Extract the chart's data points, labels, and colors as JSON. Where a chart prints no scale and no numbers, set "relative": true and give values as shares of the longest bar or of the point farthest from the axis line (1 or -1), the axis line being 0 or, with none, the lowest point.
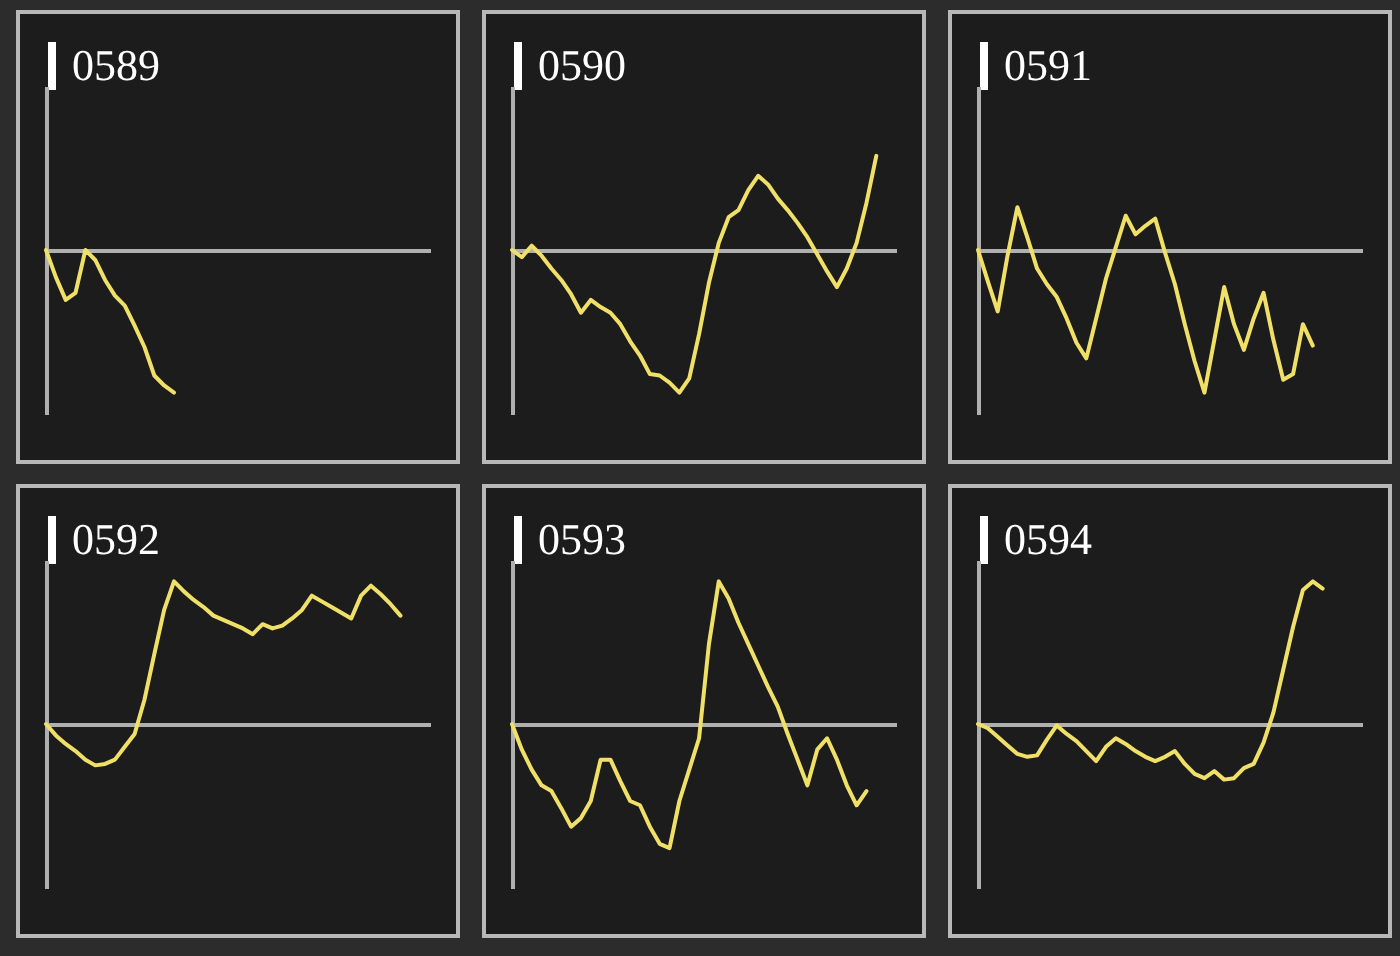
{
  "chart_data": [
    {
      "type": "line",
      "title": "0589",
      "relative": true,
      "categories": [
        null,
        null,
        null,
        null,
        null,
        null,
        null,
        null,
        null,
        null,
        null,
        null,
        null,
        null,
        null,
        null,
        null,
        null,
        null,
        null,
        null,
        null,
        null,
        null,
        null,
        null,
        null,
        null,
        null,
        null,
        null,
        null,
        null,
        null,
        null,
        null,
        null,
        null,
        null,
        null
      ],
      "series": [
        {
          "color": "#f0e068",
          "values": [
            0,
            -0.19,
            -0.35,
            -0.3,
            0,
            -0.07,
            -0.21,
            -0.32,
            -0.39,
            -0.53,
            -0.68,
            -0.88,
            -0.95,
            -1,
            null,
            null,
            null,
            null,
            null,
            null,
            null,
            null,
            null,
            null,
            null,
            null,
            null,
            null,
            null,
            null,
            null,
            null,
            null,
            null,
            null,
            null,
            null,
            null,
            null,
            null
          ]
        }
      ]
    },
    {
      "type": "line",
      "title": "0590",
      "relative": true,
      "categories": [
        null,
        null,
        null,
        null,
        null,
        null,
        null,
        null,
        null,
        null,
        null,
        null,
        null,
        null,
        null,
        null,
        null,
        null,
        null,
        null,
        null,
        null,
        null,
        null,
        null,
        null,
        null,
        null,
        null,
        null,
        null,
        null,
        null,
        null,
        null,
        null,
        null,
        null,
        null,
        null
      ],
      "series": [
        {
          "color": "#f0e068",
          "values": [
            0,
            -0.05,
            0.03,
            -0.04,
            -0.13,
            -0.21,
            -0.31,
            -0.44,
            -0.35,
            -0.4,
            -0.44,
            -0.52,
            -0.64,
            -0.74,
            -0.87,
            -0.88,
            -0.93,
            -1,
            -0.9,
            -0.59,
            -0.23,
            0.05,
            0.23,
            0.28,
            0.42,
            0.52,
            0.46,
            0.36,
            0.28,
            0.19,
            0.09,
            -0.03,
            -0.15,
            -0.26,
            -0.13,
            0.05,
            0.33,
            0.66,
            null,
            null
          ]
        }
      ]
    },
    {
      "type": "line",
      "title": "0591",
      "relative": true,
      "categories": [
        null,
        null,
        null,
        null,
        null,
        null,
        null,
        null,
        null,
        null,
        null,
        null,
        null,
        null,
        null,
        null,
        null,
        null,
        null,
        null,
        null,
        null,
        null,
        null,
        null,
        null,
        null,
        null,
        null,
        null,
        null,
        null,
        null,
        null,
        null,
        null,
        null,
        null,
        null,
        null
      ],
      "series": [
        {
          "color": "#f0e068",
          "values": [
            0,
            -0.22,
            -0.43,
            -0.04,
            0.3,
            0.09,
            -0.13,
            -0.24,
            -0.33,
            -0.48,
            -0.65,
            -0.76,
            -0.48,
            -0.2,
            0.02,
            0.24,
            0.11,
            0.17,
            0.22,
            -0.02,
            -0.24,
            -0.52,
            -0.78,
            -1,
            -0.63,
            -0.26,
            -0.52,
            -0.7,
            -0.48,
            -0.3,
            -0.63,
            -0.91,
            -0.87,
            -0.52,
            -0.67,
            null,
            null,
            null,
            null,
            null
          ]
        }
      ]
    },
    {
      "type": "line",
      "title": "0592",
      "relative": true,
      "categories": [
        null,
        null,
        null,
        null,
        null,
        null,
        null,
        null,
        null,
        null,
        null,
        null,
        null,
        null,
        null,
        null,
        null,
        null,
        null,
        null,
        null,
        null,
        null,
        null,
        null,
        null,
        null,
        null,
        null,
        null,
        null,
        null,
        null,
        null,
        null,
        null,
        null,
        null,
        null,
        null
      ],
      "series": [
        {
          "color": "#f0e068",
          "values": [
            0,
            -0.08,
            -0.14,
            -0.19,
            -0.25,
            -0.29,
            -0.28,
            -0.25,
            -0.16,
            -0.07,
            0.17,
            0.49,
            0.8,
            1,
            0.93,
            0.87,
            0.82,
            0.76,
            0.73,
            0.7,
            0.67,
            0.63,
            0.7,
            0.67,
            0.69,
            0.74,
            0.8,
            0.9,
            0.86,
            0.82,
            0.78,
            0.74,
            0.9,
            0.97,
            0.91,
            0.84,
            0.76,
            null,
            null,
            null
          ]
        }
      ]
    },
    {
      "type": "line",
      "title": "0593",
      "relative": true,
      "categories": [
        null,
        null,
        null,
        null,
        null,
        null,
        null,
        null,
        null,
        null,
        null,
        null,
        null,
        null,
        null,
        null,
        null,
        null,
        null,
        null,
        null,
        null,
        null,
        null,
        null,
        null,
        null,
        null,
        null,
        null,
        null,
        null,
        null,
        null,
        null,
        null,
        null,
        null,
        null,
        null
      ],
      "series": [
        {
          "color": "#f0e068",
          "values": [
            0,
            -0.18,
            -0.32,
            -0.43,
            -0.47,
            -0.59,
            -0.72,
            -0.66,
            -0.54,
            -0.25,
            -0.25,
            -0.4,
            -0.54,
            -0.57,
            -0.72,
            -0.84,
            -0.87,
            -0.54,
            -0.32,
            -0.1,
            0.56,
            1,
            0.88,
            0.71,
            0.56,
            0.41,
            0.26,
            0.12,
            -0.07,
            -0.25,
            -0.43,
            -0.18,
            -0.1,
            -0.25,
            -0.43,
            -0.57,
            -0.47,
            null,
            null,
            null
          ]
        }
      ]
    },
    {
      "type": "line",
      "title": "0594",
      "relative": true,
      "categories": [
        null,
        null,
        null,
        null,
        null,
        null,
        null,
        null,
        null,
        null,
        null,
        null,
        null,
        null,
        null,
        null,
        null,
        null,
        null,
        null,
        null,
        null,
        null,
        null,
        null,
        null,
        null,
        null,
        null,
        null,
        null,
        null,
        null,
        null,
        null,
        null,
        null,
        null,
        null,
        null
      ],
      "series": [
        {
          "color": "#f0e068",
          "values": [
            0,
            -0.03,
            -0.09,
            -0.15,
            -0.21,
            -0.23,
            -0.22,
            -0.11,
            -0.01,
            -0.07,
            -0.12,
            -0.19,
            -0.26,
            -0.16,
            -0.1,
            -0.14,
            -0.19,
            -0.23,
            -0.26,
            -0.23,
            -0.19,
            -0.28,
            -0.35,
            -0.38,
            -0.33,
            -0.39,
            -0.38,
            -0.31,
            -0.28,
            -0.13,
            0.08,
            0.38,
            0.68,
            0.94,
            1,
            0.95,
            null,
            null,
            null,
            null
          ]
        }
      ]
    }
  ]
}
